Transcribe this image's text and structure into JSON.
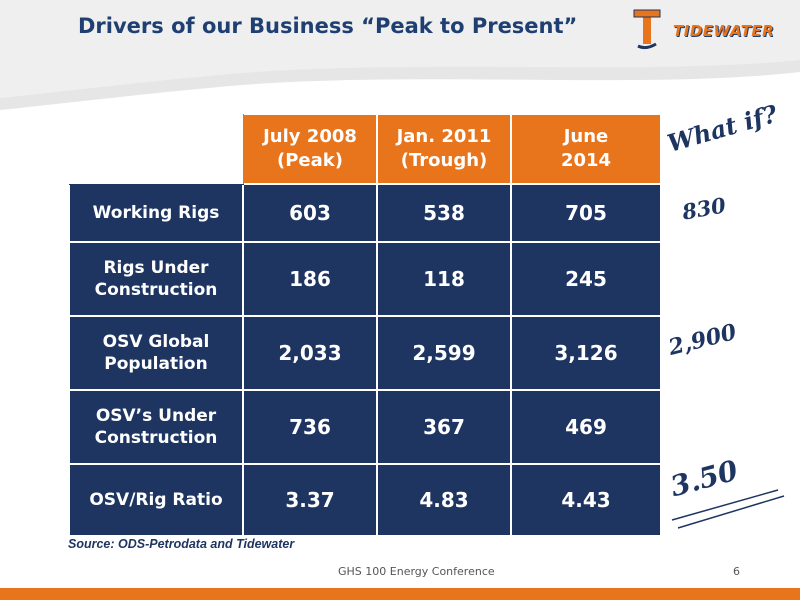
{
  "title": "Drivers of our Business “Peak to Present”",
  "logo": {
    "text": "TIDEWATER"
  },
  "table": {
    "columns": [
      "July 2008\n(Peak)",
      "Jan. 2011\n(Trough)",
      "June\n2014"
    ],
    "rows": [
      {
        "label": "Working Rigs",
        "values": [
          "603",
          "538",
          "705"
        ]
      },
      {
        "label": "Rigs Under\nConstruction",
        "values": [
          "186",
          "118",
          "245"
        ]
      },
      {
        "label": "OSV Global\nPopulation",
        "values": [
          "2,033",
          "2,599",
          "3,126"
        ]
      },
      {
        "label": "OSV’s Under\nConstruction",
        "values": [
          "736",
          "367",
          "469"
        ]
      },
      {
        "label": "OSV/Rig Ratio",
        "values": [
          "3.37",
          "4.83",
          "4.43"
        ]
      }
    ]
  },
  "annotations": {
    "what_if": "What if?",
    "working_rigs": "830",
    "osv_population": "2,900",
    "ratio": "3.50"
  },
  "source": "Source: ODS-Petrodata and Tidewater",
  "footer": {
    "text": "GHS 100 Energy Conference",
    "page": "6"
  },
  "colors": {
    "navy": "#1e3562",
    "orange": "#e8741c"
  }
}
